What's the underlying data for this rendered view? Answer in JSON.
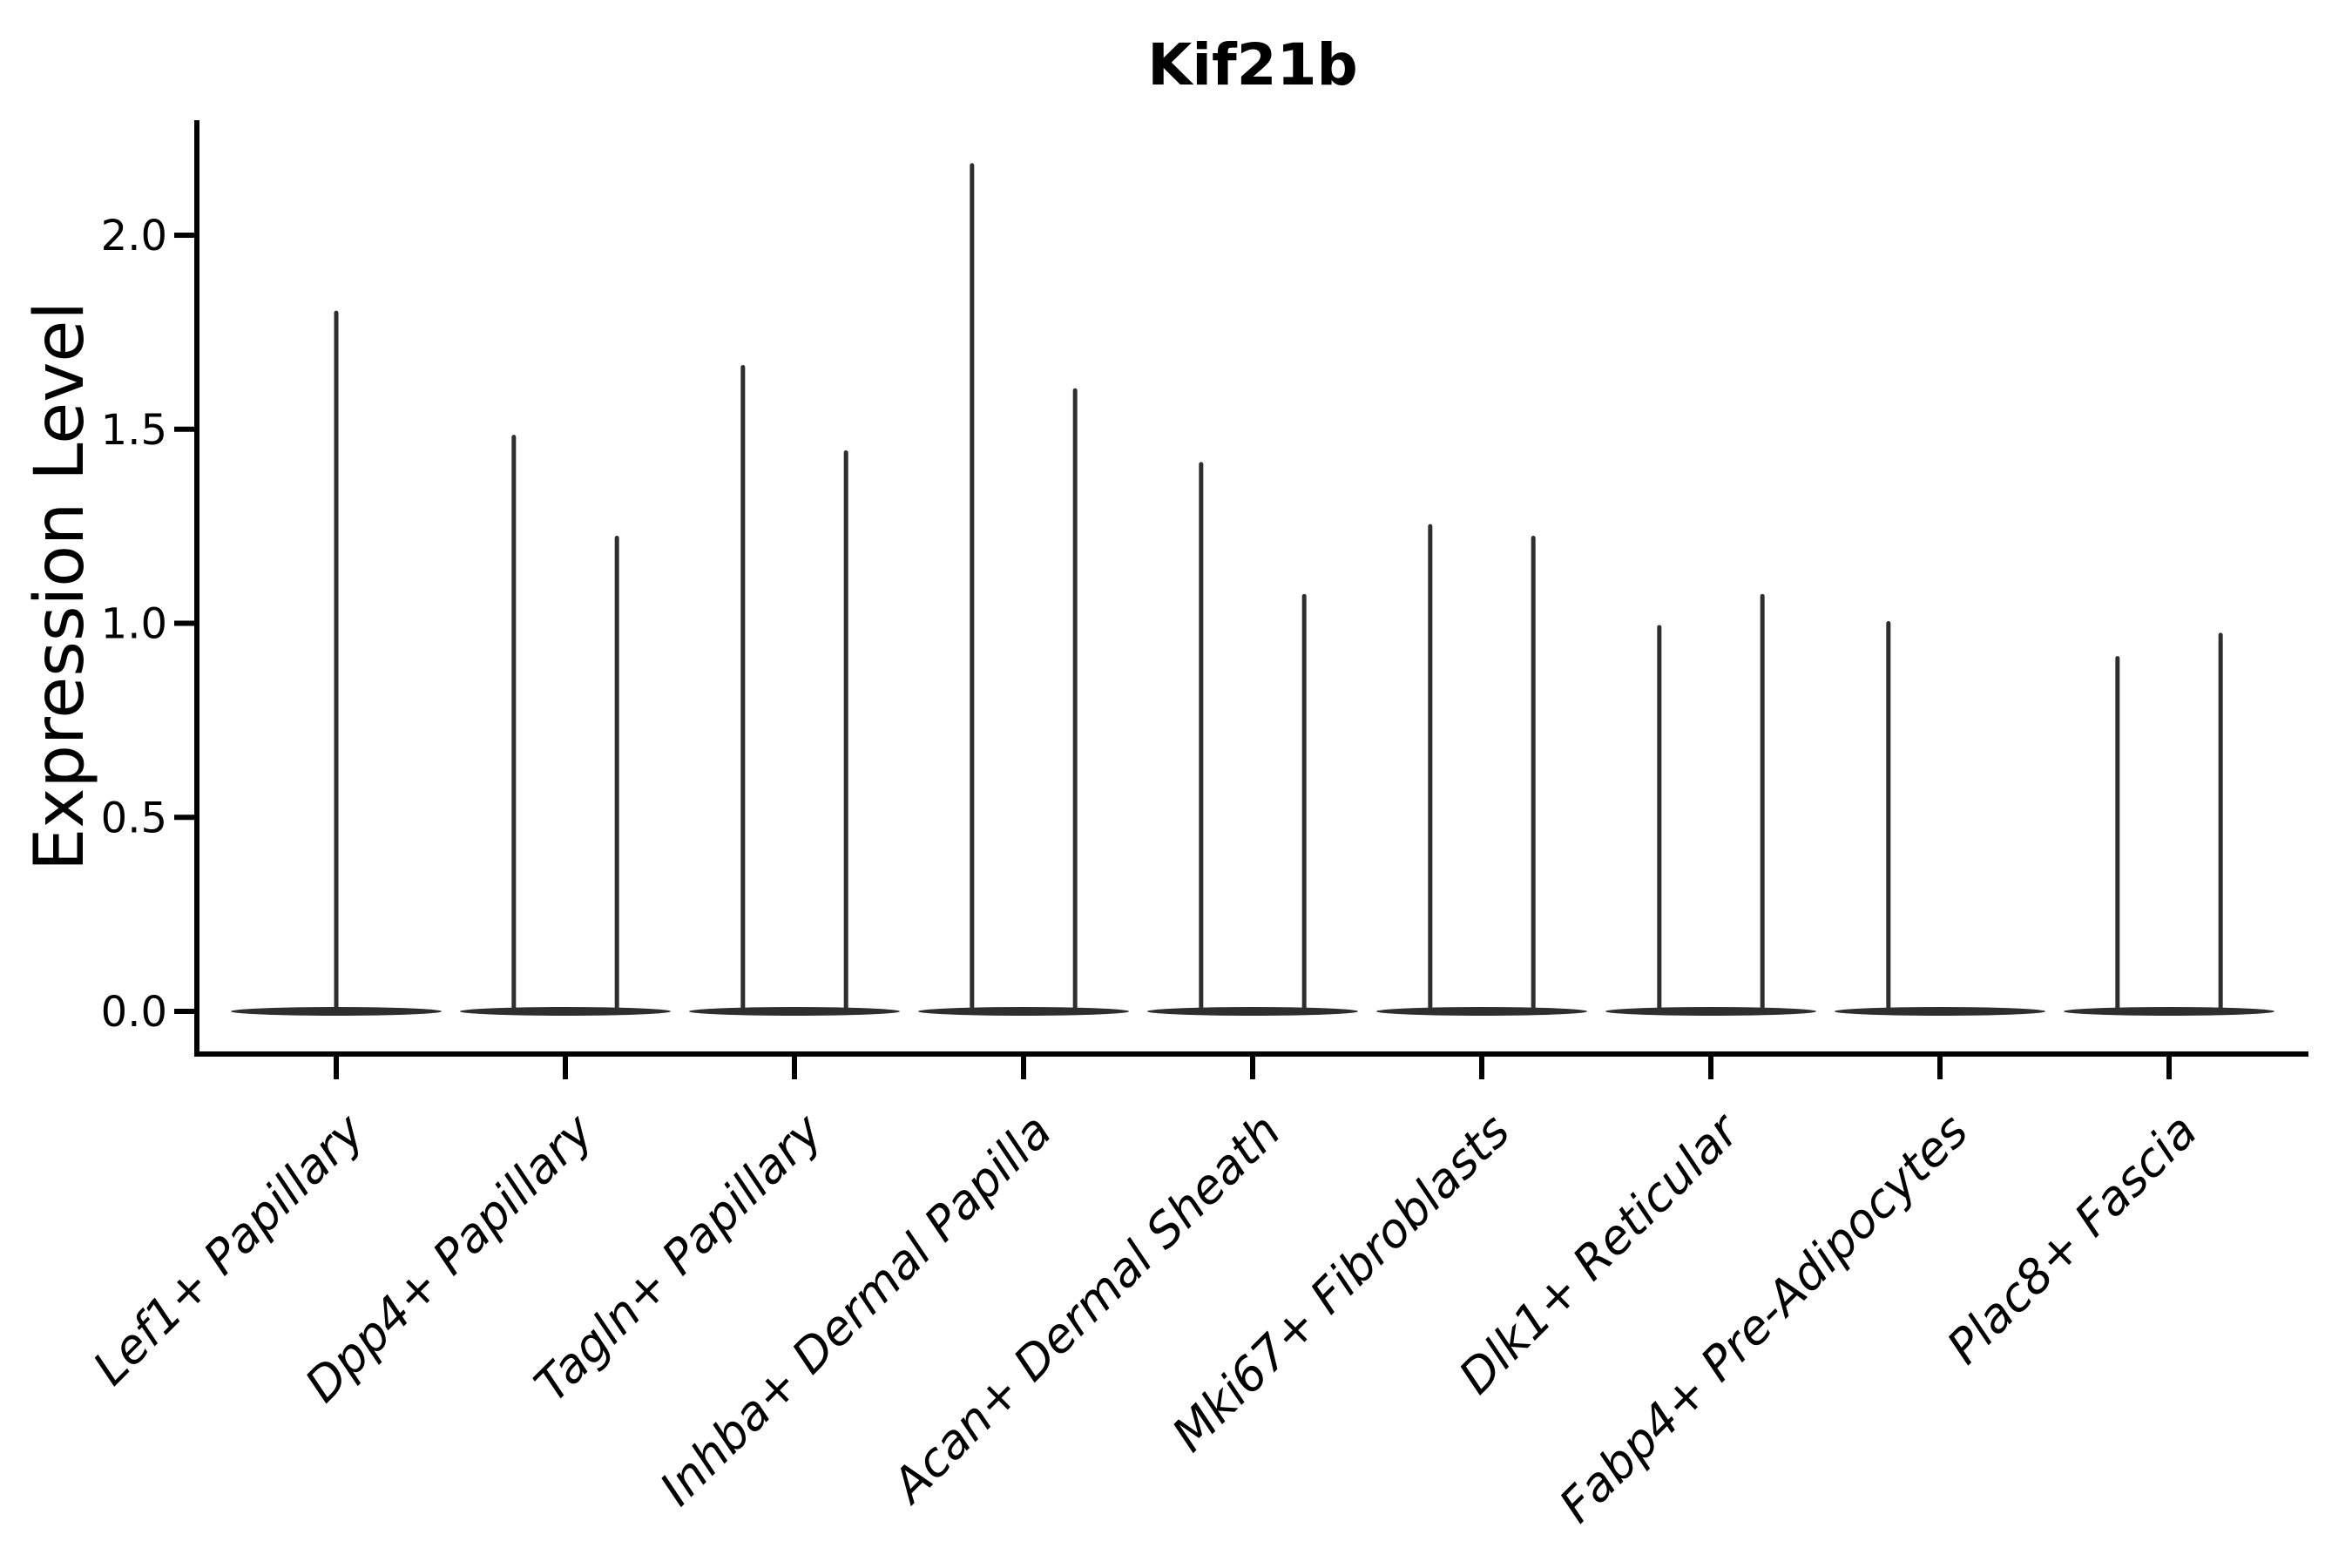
{
  "figure": {
    "background": "#ffffff"
  },
  "chart_data": {
    "type": "violin",
    "title": "Kif21b",
    "xlabel": "",
    "ylabel": "Expression Level",
    "grid": false,
    "legend": null,
    "ylim": [
      -0.11,
      2.3
    ],
    "ytick_values": [
      0.0,
      0.5,
      1.0,
      1.5,
      2.0
    ],
    "ytick_labels": [
      "0.0",
      "0.5",
      "1.0",
      "1.5",
      "2.0"
    ],
    "categories": [
      "Lef1+ Papillary",
      "Dpp4+ Papillary",
      "Tagln+ Papillary",
      "Inhba+ Dermal Papilla",
      "Acan+ Dermal Sheath",
      "Mki67+ Fibroblasts",
      "Dlk1+ Reticular",
      "Fabp4+ Pre-Adipocytes",
      "Plac8+ Fascia"
    ],
    "violins": [
      {
        "category": "Lef1+ Papillary",
        "base_value": 0.0,
        "spikes": [
          {
            "dx": 0.0,
            "max": 1.8
          }
        ]
      },
      {
        "category": "Dpp4+ Papillary",
        "base_value": 0.0,
        "spikes": [
          {
            "dx": -0.225,
            "max": 1.48
          },
          {
            "dx": 0.225,
            "max": 1.22
          }
        ]
      },
      {
        "category": "Tagln+ Papillary",
        "base_value": 0.0,
        "spikes": [
          {
            "dx": -0.225,
            "max": 1.66
          },
          {
            "dx": 0.225,
            "max": 1.44
          }
        ]
      },
      {
        "category": "Inhba+ Dermal Papilla",
        "base_value": 0.0,
        "spikes": [
          {
            "dx": -0.225,
            "max": 2.18
          },
          {
            "dx": 0.225,
            "max": 1.6
          }
        ]
      },
      {
        "category": "Acan+ Dermal Sheath",
        "base_value": 0.0,
        "spikes": [
          {
            "dx": -0.225,
            "max": 1.41
          },
          {
            "dx": 0.225,
            "max": 1.07
          }
        ]
      },
      {
        "category": "Mki67+ Fibroblasts",
        "base_value": 0.0,
        "spikes": [
          {
            "dx": -0.225,
            "max": 1.25
          },
          {
            "dx": 0.225,
            "max": 1.22
          }
        ]
      },
      {
        "category": "Dlk1+ Reticular",
        "base_value": 0.0,
        "spikes": [
          {
            "dx": -0.225,
            "max": 0.99
          },
          {
            "dx": 0.225,
            "max": 1.07
          }
        ]
      },
      {
        "category": "Fabp4+ Pre-Adipocytes",
        "base_value": 0.0,
        "spikes": [
          {
            "dx": -0.225,
            "max": 1.0
          }
        ]
      },
      {
        "category": "Plac8+ Fascia",
        "base_value": 0.0,
        "spikes": [
          {
            "dx": -0.225,
            "max": 0.91
          },
          {
            "dx": 0.225,
            "max": 0.97
          }
        ]
      }
    ],
    "base_halfwidth_fraction": 0.46,
    "note": "Each violin is collapsed: a wide flat density lens at expression 0 plus thin vertical density spike(s) rising to the max expression value"
  },
  "colors": {
    "violin": "#2e2e2e",
    "axis": "#000000",
    "text": "#000000",
    "background": "#ffffff"
  }
}
